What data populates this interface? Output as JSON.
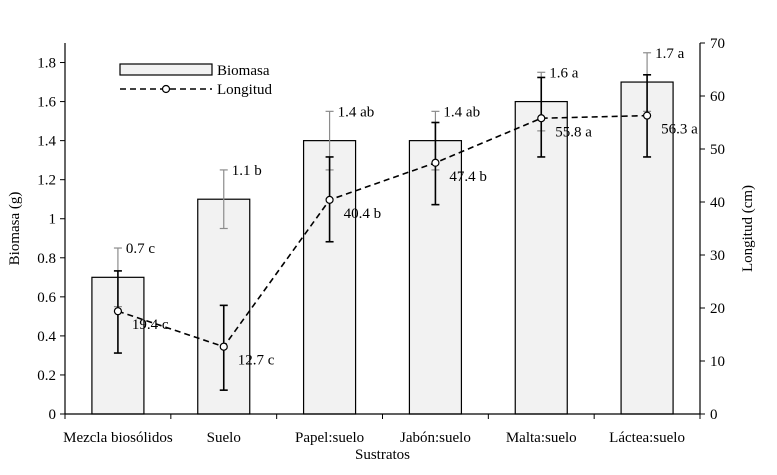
{
  "chart_data": {
    "type": "bar",
    "xlabel": "Sustratos",
    "ylabel": "Biomasa (g)",
    "y2label": "Longitud (cm)",
    "categories": [
      "Mezcla biosólidos",
      "Suelo",
      "Papel:suelo",
      "Jabón:suelo",
      "Malta:suelo",
      "Láctea:suelo"
    ],
    "ylim": [
      0,
      1.9
    ],
    "yticks": [
      "0",
      "0.2",
      "0.4",
      "0.6",
      "0.8",
      "1",
      "1.2",
      "1.4",
      "1.6",
      "1.8"
    ],
    "y2lim": [
      0,
      70
    ],
    "y2ticks": [
      "0",
      "10",
      "20",
      "30",
      "40",
      "50",
      "60",
      "70"
    ],
    "grid": false,
    "legend_position": "top-left",
    "series": [
      {
        "name": "Biomasa",
        "type": "bar",
        "axis": "left",
        "color": "#f2f2f2",
        "values": [
          0.7,
          1.1,
          1.4,
          1.4,
          1.6,
          1.7
        ],
        "error_high": [
          0.85,
          1.25,
          1.55,
          1.55,
          1.75,
          1.85
        ],
        "error_low": [
          0.55,
          0.95,
          1.25,
          1.25,
          1.45,
          1.55
        ],
        "labels": [
          "0.7 c",
          "1.1 b",
          "1.4 ab",
          "1.4 ab",
          "1.6 a",
          "1.7 a"
        ]
      },
      {
        "name": "Longitud",
        "type": "line",
        "axis": "right",
        "style": "dashed",
        "color": "#000000",
        "values": [
          19.4,
          12.7,
          40.4,
          47.4,
          55.8,
          56.3
        ],
        "error_high": [
          27,
          20.5,
          48.5,
          55,
          63.5,
          64
        ],
        "error_low": [
          11.5,
          4.5,
          32.5,
          39.5,
          48.5,
          48.5
        ],
        "labels": [
          "19.4 c",
          "12.7 c",
          "40.4 b",
          "47.4 b",
          "55.8 a",
          "56.3 a"
        ]
      }
    ]
  }
}
